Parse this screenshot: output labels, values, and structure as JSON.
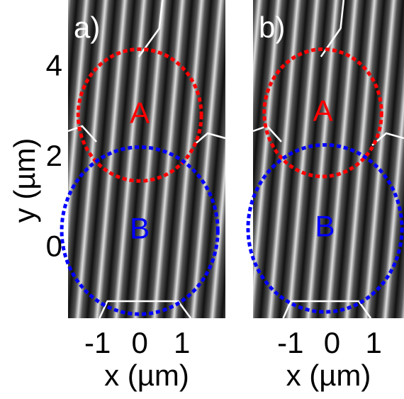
{
  "chart_data": [
    {
      "type": "image",
      "panel_label": "a)",
      "xlabel": "x (µm)",
      "ylabel": "y (µm)",
      "xlim": [
        -1.7,
        2.03
      ],
      "ylim": [
        -1.55,
        5.5
      ],
      "xticks": [
        -1,
        0,
        1
      ],
      "yticks": [
        0,
        2,
        4
      ],
      "regions": [
        {
          "label": "A",
          "color": "#ff0000",
          "cx": 0,
          "cy": 2.95,
          "r": 1.46
        },
        {
          "label": "B",
          "color": "#0000ff",
          "cx": 0,
          "cy": 0.39,
          "r": 1.85
        }
      ]
    },
    {
      "type": "image",
      "panel_label": "b)",
      "xlabel": "x (µm)",
      "xlim": [
        -1.9,
        1.73
      ],
      "ylim": [
        -1.55,
        5.5
      ],
      "xticks": [
        -1,
        0,
        1
      ],
      "regions": [
        {
          "label": "A",
          "color": "#ff0000",
          "cx": -0.22,
          "cy": 3.0,
          "r": 1.41
        },
        {
          "label": "B",
          "color": "#0000ff",
          "cx": -0.17,
          "cy": 0.44,
          "r": 1.85
        }
      ]
    }
  ]
}
